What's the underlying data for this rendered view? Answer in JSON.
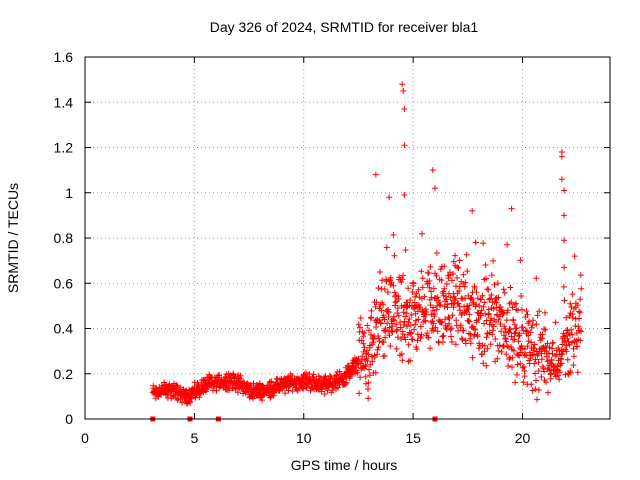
{
  "chart_data": {
    "type": "scatter",
    "title": "Day 326 of 2024, SRMTID for receiver bla1",
    "xlabel": "GPS time / hours",
    "ylabel": "SRMTID / TECUs",
    "xlim": [
      0,
      24
    ],
    "ylim": [
      0,
      1.6
    ],
    "xticks": [
      0,
      5,
      10,
      15,
      20
    ],
    "xtick_labels": [
      "0",
      "5",
      "10",
      "15",
      "20"
    ],
    "yticks": [
      0,
      0.2,
      0.4,
      0.6,
      0.8,
      1.0,
      1.2,
      1.4,
      1.6
    ],
    "ytick_labels": [
      "0",
      "0.2",
      "0.4",
      "0.6",
      "0.8",
      "1",
      "1.2",
      "1.4",
      "1.6"
    ],
    "grid": true,
    "marker": "+",
    "series": [
      {
        "name": "SRMTID",
        "color": "#ff0000",
        "trend": [
          {
            "x": 3.1,
            "y": 0.12
          },
          {
            "x": 4.0,
            "y": 0.13
          },
          {
            "x": 4.6,
            "y": 0.1
          },
          {
            "x": 5.0,
            "y": 0.12
          },
          {
            "x": 5.5,
            "y": 0.15
          },
          {
            "x": 6.5,
            "y": 0.17
          },
          {
            "x": 7.0,
            "y": 0.16
          },
          {
            "x": 7.5,
            "y": 0.13
          },
          {
            "x": 8.0,
            "y": 0.12
          },
          {
            "x": 9.0,
            "y": 0.15
          },
          {
            "x": 10.0,
            "y": 0.17
          },
          {
            "x": 11.0,
            "y": 0.15
          },
          {
            "x": 11.8,
            "y": 0.18
          },
          {
            "x": 12.5,
            "y": 0.25
          },
          {
            "x": 13.0,
            "y": 0.3
          },
          {
            "x": 13.5,
            "y": 0.45
          },
          {
            "x": 14.0,
            "y": 0.45
          },
          {
            "x": 15.0,
            "y": 0.45
          },
          {
            "x": 16.0,
            "y": 0.5
          },
          {
            "x": 17.0,
            "y": 0.5
          },
          {
            "x": 18.0,
            "y": 0.45
          },
          {
            "x": 19.0,
            "y": 0.42
          },
          {
            "x": 20.0,
            "y": 0.35
          },
          {
            "x": 20.5,
            "y": 0.3
          },
          {
            "x": 21.0,
            "y": 0.3
          },
          {
            "x": 21.5,
            "y": 0.22
          },
          {
            "x": 22.0,
            "y": 0.35
          },
          {
            "x": 22.7,
            "y": 0.4
          }
        ],
        "spikes": [
          {
            "x": 13.3,
            "y": 1.08
          },
          {
            "x": 13.9,
            "y": 0.98
          },
          {
            "x": 14.5,
            "y": 1.48
          },
          {
            "x": 14.55,
            "y": 1.45
          },
          {
            "x": 14.6,
            "y": 1.37
          },
          {
            "x": 14.6,
            "y": 1.21
          },
          {
            "x": 14.6,
            "y": 0.99
          },
          {
            "x": 15.9,
            "y": 1.1
          },
          {
            "x": 16.0,
            "y": 1.02
          },
          {
            "x": 17.7,
            "y": 0.92
          },
          {
            "x": 19.5,
            "y": 0.93
          },
          {
            "x": 21.8,
            "y": 1.18
          },
          {
            "x": 21.8,
            "y": 1.16
          },
          {
            "x": 21.8,
            "y": 1.06
          },
          {
            "x": 21.9,
            "y": 1.01
          },
          {
            "x": 21.9,
            "y": 0.9
          },
          {
            "x": 21.9,
            "y": 0.79
          },
          {
            "x": 21.9,
            "y": 0.67
          }
        ],
        "zero_markers": [
          3.1,
          4.8,
          6.1,
          16.0
        ]
      }
    ]
  }
}
